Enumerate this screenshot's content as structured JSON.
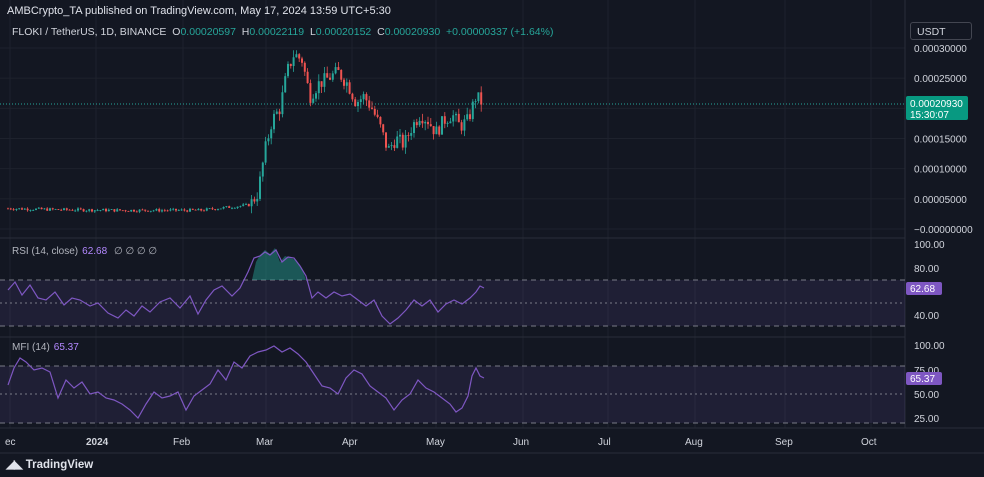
{
  "publisher_line": "AMBCrypto_TA published on TradingView.com, May 17, 2024 13:59 UTC+5:30",
  "symbol": {
    "name": "FLOKI / TetherUS, 1D, BINANCE",
    "o_label": "O",
    "o": "0.00020597",
    "h_label": "H",
    "h": "0.00022119",
    "l_label": "L",
    "l": "0.00020152",
    "c_label": "C",
    "c": "0.00020930",
    "change": "+0.00000337 (+1.64%)"
  },
  "currency_button": "USDT",
  "price_badge": {
    "price": "0.00020930",
    "countdown": "15:30:07"
  },
  "rsi": {
    "label": "RSI (14, close)",
    "value": "62.68",
    "settings": "∅ ∅ ∅ ∅",
    "badge": "62.68"
  },
  "mfi": {
    "label": "MFI (14)",
    "value": "65.37",
    "badge": "65.37"
  },
  "branding": "TradingView",
  "colors": {
    "up": "#26a69a",
    "down": "#ef5350",
    "indicator": "#7e57c2",
    "background": "#131722"
  },
  "chart_data": [
    {
      "type": "candlestick",
      "title": "FLOKI / TetherUS, 1D, BINANCE",
      "ylim": [
        -1e-05,
        0.00032
      ],
      "yticks": [
        "0.00030000",
        "0.00025000",
        "0.00020000",
        "0.00015000",
        "0.00010000",
        "0.00005000",
        "0.00000000"
      ],
      "ytick_labels": [
        "0.00030000",
        "0.00025000",
        "0.00020000",
        "0.00015000",
        "0.00010000",
        "0.00005000",
        "−0.00000000"
      ],
      "x_ticks": [
        "ec",
        "2024",
        "Feb",
        "Mar",
        "Apr",
        "May",
        "Jun",
        "Jul",
        "Aug",
        "Sep",
        "Oct"
      ],
      "last_close": 0.0002093,
      "approx_closes": [
        {
          "date": "2023-12",
          "close": 3.4e-05
        },
        {
          "date": "2024-01",
          "close": 3.1e-05
        },
        {
          "date": "2024-02",
          "close": 3e-05
        },
        {
          "date": "2024-02-25",
          "close": 4.5e-05
        },
        {
          "date": "2024-03-01",
          "close": 0.00018
        },
        {
          "date": "2024-03-05",
          "close": 0.00029
        },
        {
          "date": "2024-03-14",
          "close": 0.00024
        },
        {
          "date": "2024-03-25",
          "close": 0.00025
        },
        {
          "date": "2024-04-05",
          "close": 0.0002
        },
        {
          "date": "2024-04-13",
          "close": 0.00013
        },
        {
          "date": "2024-04-25",
          "close": 0.00019
        },
        {
          "date": "2024-05-05",
          "close": 0.00016
        },
        {
          "date": "2024-05-17",
          "close": 0.0002093
        }
      ]
    },
    {
      "type": "line",
      "title": "RSI (14, close)",
      "ylim": [
        25,
        100
      ],
      "yticks": [
        "100.00",
        "80.00",
        "40.00"
      ],
      "last_value": 62.68,
      "bands": [
        70,
        50,
        30
      ]
    },
    {
      "type": "line",
      "title": "MFI (14)",
      "ylim": [
        20,
        100
      ],
      "yticks": [
        "100.00",
        "75.00",
        "50.00",
        "25.00"
      ],
      "last_value": 65.37,
      "bands": [
        80,
        50,
        20
      ]
    }
  ]
}
